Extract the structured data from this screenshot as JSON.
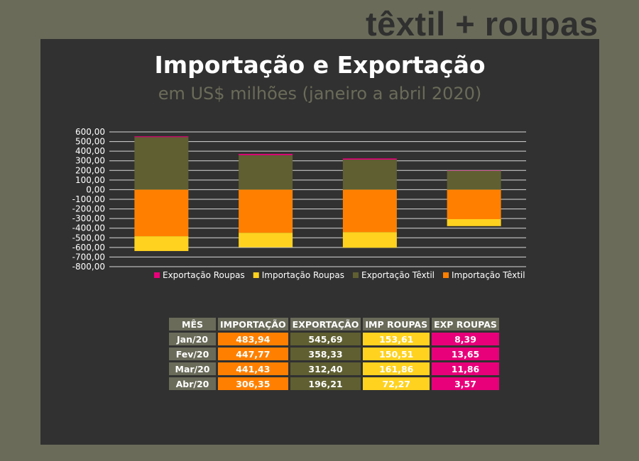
{
  "brand": "têxtil + roupas",
  "chart_data": {
    "type": "bar",
    "title": "Importação e Exportação",
    "subtitle": "em US$ milhões (janeiro a abril 2020)",
    "categories": [
      "Jan/20",
      "Fev/20",
      "Mar/20",
      "Abr/20"
    ],
    "series": [
      {
        "name": "Exportação Roupas",
        "color": "#e8007a",
        "values": [
          8.39,
          13.65,
          11.86,
          3.57
        ]
      },
      {
        "name": "Importação Roupas",
        "color": "#ffd21f",
        "values": [
          -153.61,
          -150.51,
          -161.86,
          -72.27
        ]
      },
      {
        "name": "Exportação Têxtil",
        "color": "#5f5f32",
        "values": [
          545.69,
          358.33,
          312.4,
          196.21
        ]
      },
      {
        "name": "Importação Têxtil",
        "color": "#ff8000",
        "values": [
          -483.94,
          -447.77,
          -441.43,
          -306.35
        ]
      }
    ],
    "yticks": [
      "600,00",
      "500,00",
      "400,00",
      "300,00",
      "200,00",
      "100,00",
      "0,00",
      "-100,00",
      "-200,00",
      "-300,00",
      "-400,00",
      "-500,00",
      "-600,00",
      "-700,00",
      "-800,00"
    ],
    "ylim": [
      -800,
      600
    ],
    "grid": true,
    "legend": "bottom"
  },
  "table": {
    "headers": [
      "MÊS",
      "IMPORTAÇÃO",
      "EXPORTAÇÃO",
      "IMP ROUPAS",
      "EXP ROUPAS"
    ],
    "rows": [
      [
        "Jan/20",
        "483,94",
        "545,69",
        "153,61",
        "8,39"
      ],
      [
        "Fev/20",
        "447,77",
        "358,33",
        "150,51",
        "13,65"
      ],
      [
        "Mar/20",
        "441,43",
        "312,40",
        "161,86",
        "11,86"
      ],
      [
        "Abr/20",
        "306,35",
        "196,21",
        "72,27",
        "3,57"
      ]
    ]
  }
}
